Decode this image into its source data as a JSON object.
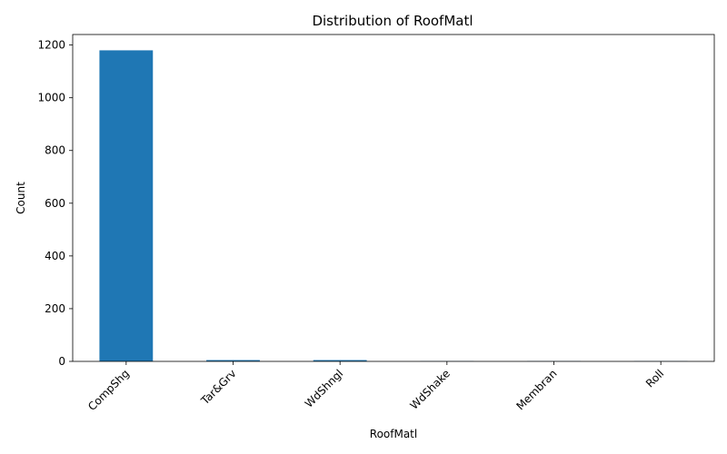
{
  "chart_data": {
    "type": "bar",
    "title": "Distribution of RoofMatl",
    "xlabel": "RoofMatl",
    "ylabel": "Count",
    "categories": [
      "CompShg",
      "Tar&Grv",
      "WdShngl",
      "WdShake",
      "Membran",
      "Roll"
    ],
    "values": [
      1180,
      5,
      5,
      1,
      1,
      1
    ],
    "ylim": [
      0,
      1240
    ],
    "yticks": [
      0,
      200,
      400,
      600,
      800,
      1000,
      1200
    ],
    "bar_color": "#1f77b4",
    "grid": false,
    "legend": "none"
  }
}
